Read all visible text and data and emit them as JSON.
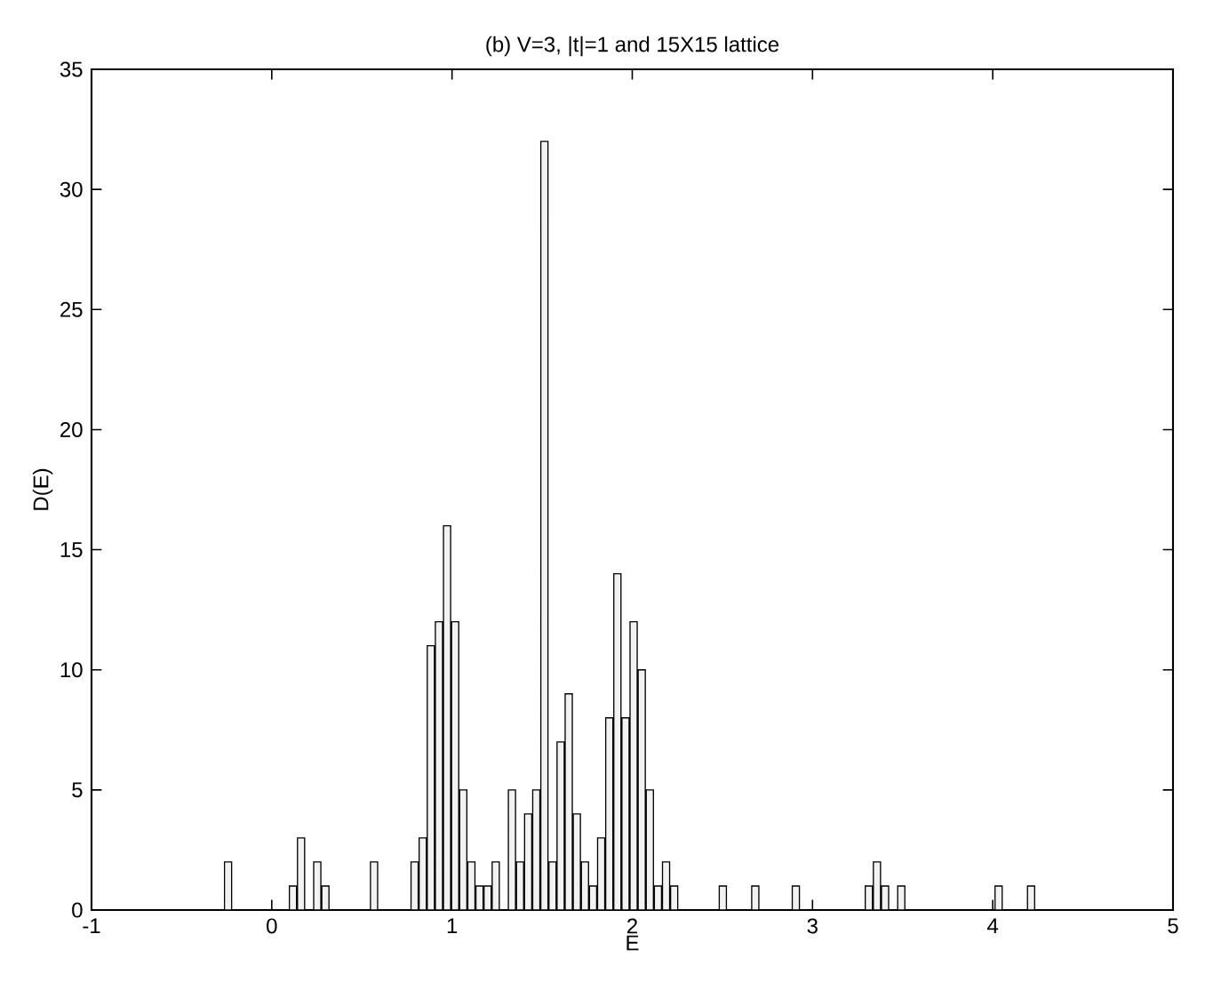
{
  "chart_data": {
    "type": "histogram",
    "title": "(b) V=3, |t|=1 and 15X15 lattice",
    "xlabel": "E",
    "ylabel": "D(E)",
    "bins": [
      -0.265,
      -0.22,
      -0.175,
      -0.13,
      -0.085,
      -0.04,
      0.005,
      0.05,
      0.095,
      0.14,
      0.185,
      0.23,
      0.275,
      0.32,
      0.365,
      0.41,
      0.455,
      0.5,
      0.545,
      0.59,
      0.635,
      0.68,
      0.725,
      0.77,
      0.815,
      0.86,
      0.905,
      0.95,
      0.995,
      1.04,
      1.085,
      1.13,
      1.175,
      1.22,
      1.265,
      1.31,
      1.355,
      1.4,
      1.445,
      1.49,
      1.535,
      1.58,
      1.625,
      1.67,
      1.715,
      1.76,
      1.805,
      1.85,
      1.895,
      1.94,
      1.985,
      2.03,
      2.075,
      2.12,
      2.165,
      2.21,
      2.255,
      2.3,
      2.345,
      2.39,
      2.435,
      2.48,
      2.525,
      2.57,
      2.615,
      2.66,
      2.705,
      2.75,
      2.795,
      2.84,
      2.885,
      2.93,
      2.975,
      3.02,
      3.065,
      3.11,
      3.155,
      3.2,
      3.245,
      3.29,
      3.335,
      3.38,
      3.425,
      3.47,
      3.515,
      3.56,
      3.605,
      3.65,
      3.695,
      3.74,
      3.785,
      3.83,
      3.875,
      3.92,
      3.965,
      4.01,
      4.055,
      4.1,
      4.145,
      4.19,
      4.235
    ],
    "values": [
      2,
      0,
      0,
      0,
      0,
      0,
      0,
      0,
      1,
      3,
      0,
      2,
      1,
      0,
      0,
      0,
      0,
      0,
      2,
      0,
      0,
      0,
      0,
      2,
      3,
      11,
      12,
      16,
      12,
      5,
      2,
      1,
      1,
      2,
      0,
      5,
      2,
      4,
      5,
      32,
      2,
      7,
      9,
      4,
      2,
      1,
      3,
      8,
      14,
      8,
      12,
      10,
      5,
      1,
      2,
      1,
      0,
      0,
      0,
      0,
      0,
      1,
      0,
      0,
      0,
      1,
      0,
      0,
      0,
      0,
      1,
      0,
      0,
      0,
      0,
      0,
      0,
      0,
      0,
      1,
      2,
      1,
      0,
      1,
      0,
      0,
      0,
      0,
      0,
      0,
      0,
      0,
      0,
      0,
      0,
      1,
      0,
      0,
      0,
      1
    ],
    "color": "#f2f2f2",
    "xlim": [
      -1,
      5
    ],
    "xticks": [
      -1,
      0,
      1,
      2,
      3,
      4,
      5
    ],
    "ylim": [
      0,
      35
    ],
    "yticks": [
      0,
      5,
      10,
      15,
      20,
      25,
      30,
      35
    ],
    "grid": false
  }
}
